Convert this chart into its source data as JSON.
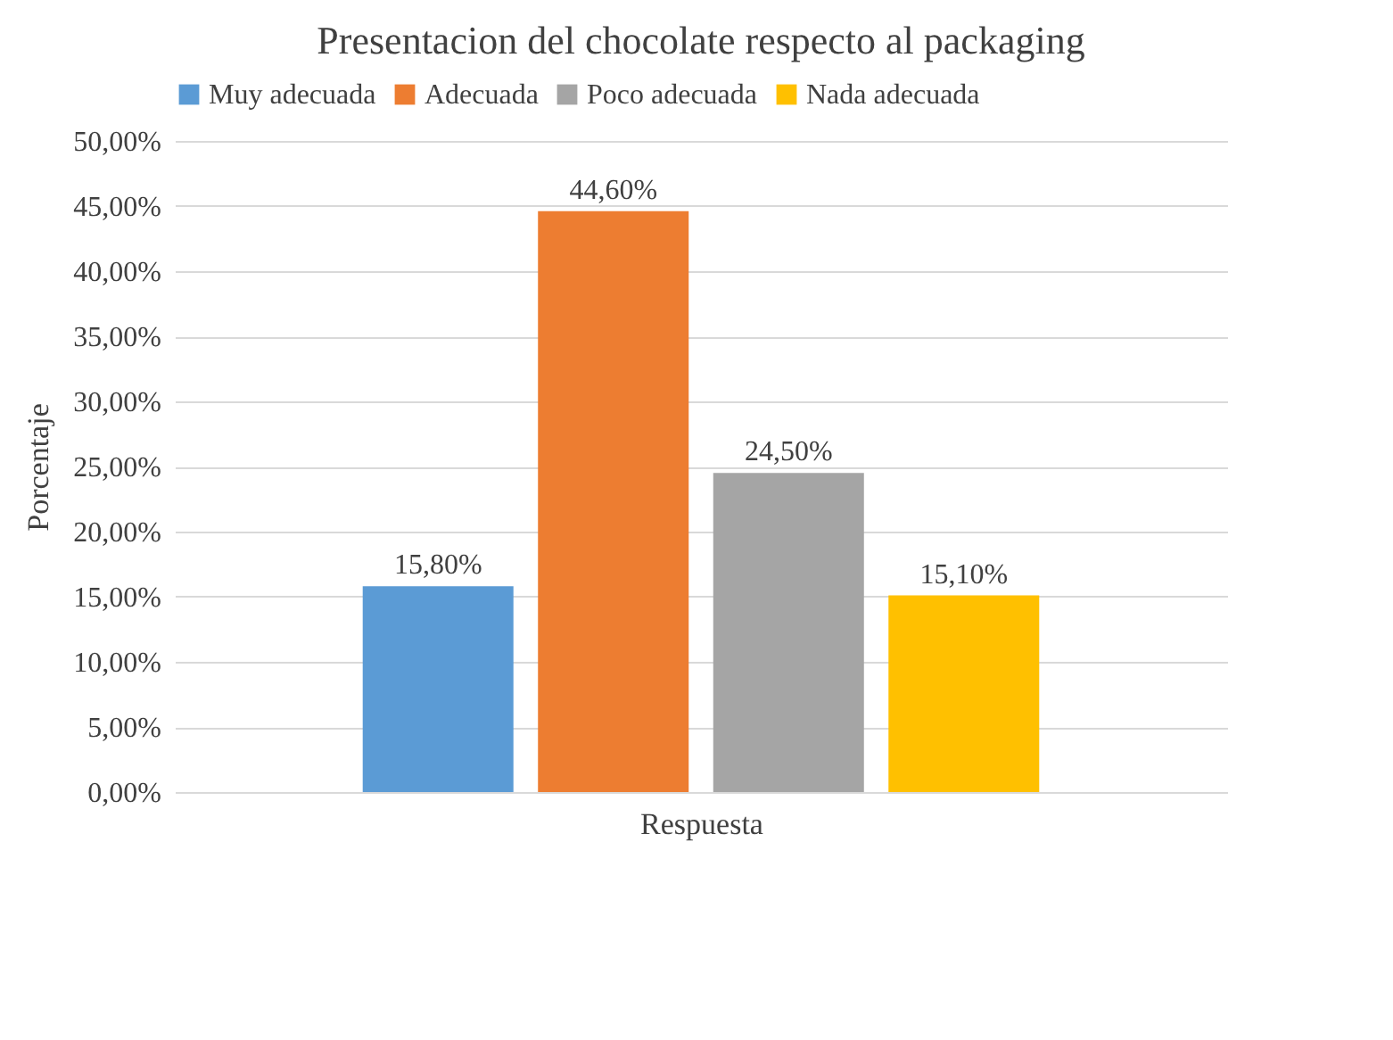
{
  "chart_data": {
    "type": "bar",
    "title": "Presentacion del chocolate respecto al packaging",
    "xlabel": "Respuesta",
    "ylabel": "Porcentaje",
    "categories": [
      null
    ],
    "series": [
      {
        "name": "Muy adecuada",
        "color": "#5b9bd5",
        "values": [
          15.8
        ],
        "value_labels": [
          "15,80%"
        ]
      },
      {
        "name": "Adecuada",
        "color": "#ed7d31",
        "values": [
          44.6
        ],
        "value_labels": [
          "44,60%"
        ]
      },
      {
        "name": "Poco adecuada",
        "color": "#a5a5a5",
        "values": [
          24.5
        ],
        "value_labels": [
          "24,50%"
        ]
      },
      {
        "name": "Nada adecuada",
        "color": "#ffc000",
        "values": [
          15.1
        ],
        "value_labels": [
          "15,10%"
        ]
      }
    ],
    "ylim": [
      0,
      50
    ],
    "yticks": [
      {
        "value": 0,
        "label": "0,00%"
      },
      {
        "value": 5,
        "label": "5,00%"
      },
      {
        "value": 10,
        "label": "10,00%"
      },
      {
        "value": 15,
        "label": "15,00%"
      },
      {
        "value": 20,
        "label": "20,00%"
      },
      {
        "value": 25,
        "label": "25,00%"
      },
      {
        "value": 30,
        "label": "30,00%"
      },
      {
        "value": 35,
        "label": "35,00%"
      },
      {
        "value": 40,
        "label": "40,00%"
      },
      {
        "value": 45,
        "label": "45,00%"
      },
      {
        "value": 50,
        "label": "50,00%"
      }
    ],
    "grid": "y",
    "legend": "top"
  }
}
